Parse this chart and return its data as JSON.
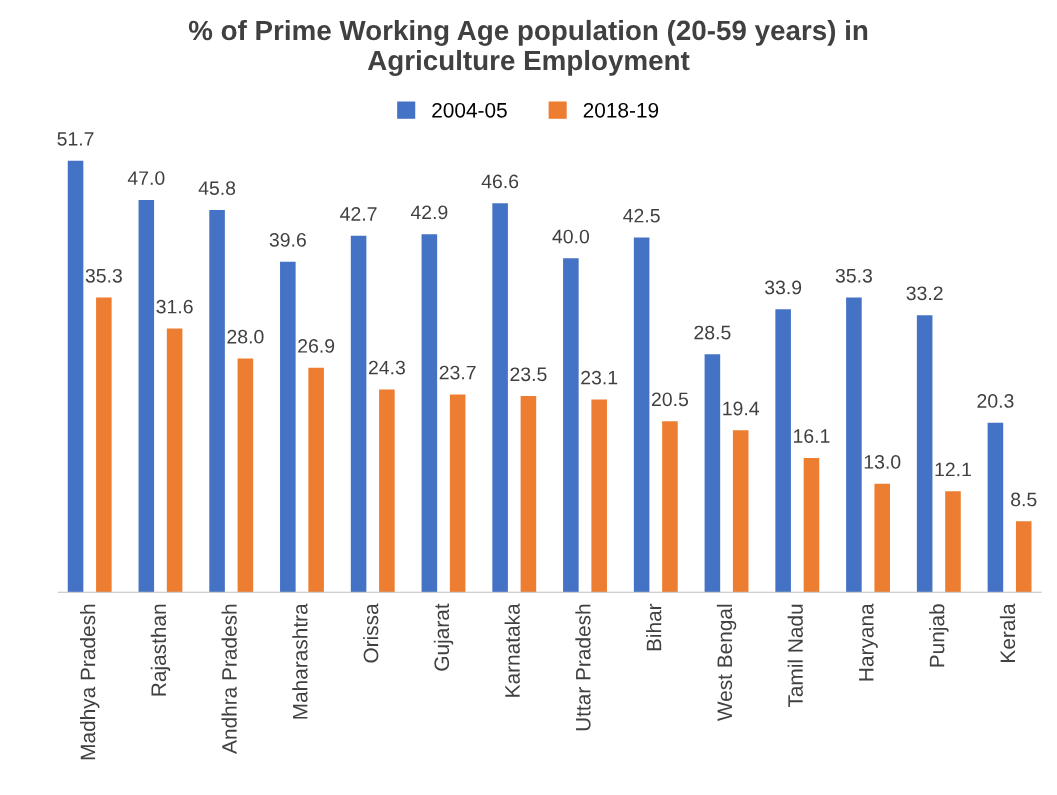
{
  "chart_data": {
    "type": "bar",
    "title": "% of Prime Working Age population (20-59 years) in\nAgriculture Employment",
    "categories": [
      "Madhya Pradesh",
      "Rajasthan",
      "Andhra Pradesh",
      "Maharashtra",
      "Orissa",
      "Gujarat",
      "Karnataka",
      "Uttar Pradesh",
      "Bihar",
      "West Bengal",
      "Tamil Nadu",
      "Haryana",
      "Punjab",
      "Kerala"
    ],
    "series": [
      {
        "name": "2004-05",
        "color": "#4472c4",
        "values": [
          51.7,
          47.0,
          45.8,
          39.6,
          42.7,
          42.9,
          46.6,
          40.0,
          42.5,
          28.5,
          33.9,
          35.3,
          33.2,
          20.3
        ],
        "value_labels": [
          "51.7",
          "47.0",
          "45.8",
          "39.6",
          "42.7",
          "42.9",
          "46.6",
          "40.0",
          "42.5",
          "28.5",
          "33.9",
          "35.3",
          "33.2",
          "20.3"
        ]
      },
      {
        "name": "2018-19",
        "color": "#ed7d31",
        "values": [
          35.3,
          31.6,
          28.0,
          26.9,
          24.3,
          23.7,
          23.5,
          23.1,
          20.5,
          19.4,
          16.1,
          13.0,
          12.1,
          8.5
        ],
        "value_labels": [
          "35.3",
          "31.6",
          "28.0",
          "26.9",
          "24.3",
          "23.7",
          "23.5",
          "23.1",
          "20.5",
          "19.4",
          "16.1",
          "13.0",
          "12.1",
          "8.5"
        ]
      }
    ],
    "legend": "top",
    "grid": false,
    "tick_labels": "x"
  }
}
